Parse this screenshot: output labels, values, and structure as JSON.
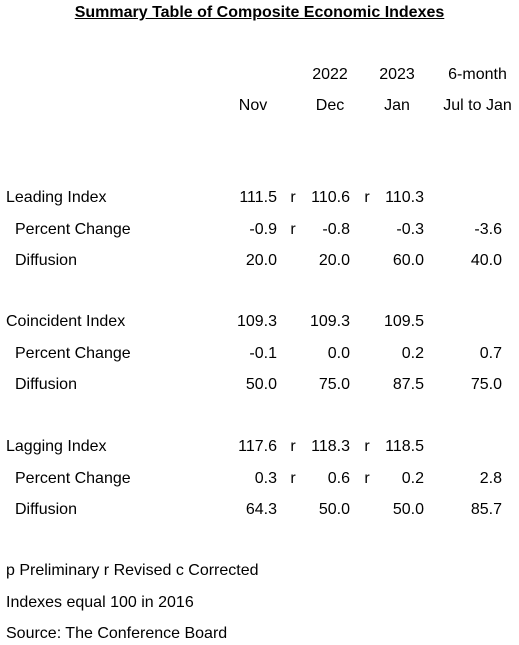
{
  "title": "Summary Table of Composite Economic Indexes",
  "header": {
    "year_dec": "2022",
    "year_jan": "2023",
    "sixmonth": "6-month",
    "nov": "Nov",
    "dec": "Dec",
    "jan": "Jan",
    "range": "Jul to Jan"
  },
  "sections": [
    {
      "rows": [
        {
          "label": "Leading Index",
          "nov": "111.5",
          "nov_mark": "r",
          "dec": "110.6",
          "dec_mark": "r",
          "jan": "110.3",
          "sixm": ""
        },
        {
          "label": "Percent Change",
          "nov": "-0.9",
          "nov_mark": "r",
          "dec": "-0.8",
          "dec_mark": "",
          "jan": "-0.3",
          "sixm": "-3.6"
        },
        {
          "label": "Diffusion",
          "nov": "20.0",
          "nov_mark": "",
          "dec": "20.0",
          "dec_mark": "",
          "jan": "60.0",
          "sixm": "40.0"
        }
      ]
    },
    {
      "rows": [
        {
          "label": "Coincident Index",
          "nov": "109.3",
          "nov_mark": "",
          "dec": "109.3",
          "dec_mark": "",
          "jan": "109.5",
          "sixm": ""
        },
        {
          "label": "Percent Change",
          "nov": "-0.1",
          "nov_mark": "",
          "dec": "0.0",
          "dec_mark": "",
          "jan": "0.2",
          "sixm": "0.7"
        },
        {
          "label": "Diffusion",
          "nov": "50.0",
          "nov_mark": "",
          "dec": "75.0",
          "dec_mark": "",
          "jan": "87.5",
          "sixm": "75.0"
        }
      ]
    },
    {
      "rows": [
        {
          "label": "Lagging Index",
          "nov": "117.6",
          "nov_mark": "r",
          "dec": "118.3",
          "dec_mark": "r",
          "jan": "118.5",
          "sixm": ""
        },
        {
          "label": "Percent Change",
          "nov": "0.3",
          "nov_mark": "r",
          "dec": "0.6",
          "dec_mark": "r",
          "jan": "0.2",
          "sixm": "2.8"
        },
        {
          "label": "Diffusion",
          "nov": "64.3",
          "nov_mark": "",
          "dec": "50.0",
          "dec_mark": "",
          "jan": "50.0",
          "sixm": "85.7"
        }
      ]
    }
  ],
  "footer": {
    "legend": "p  Preliminary  r  Revised  c Corrected",
    "base": "Indexes equal 100 in 2016",
    "source": "Source:  The Conference Board"
  }
}
